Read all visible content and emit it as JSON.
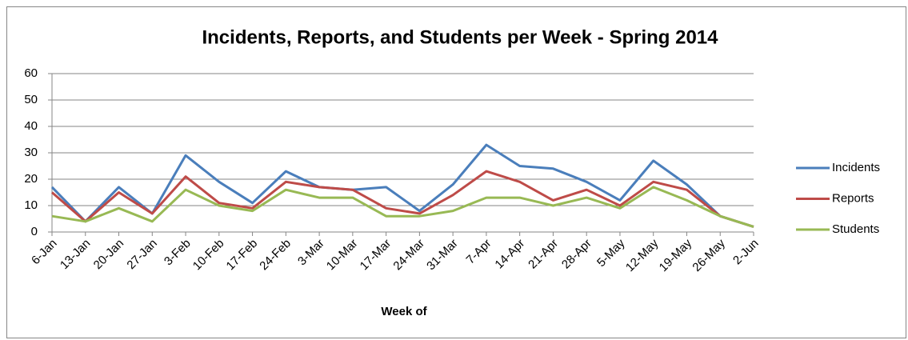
{
  "chart_data": {
    "type": "line",
    "title": "Incidents, Reports, and Students per Week - Spring 2014",
    "x_label": "Week of",
    "categories": [
      "6-Jan",
      "13-Jan",
      "20-Jan",
      "27-Jan",
      "3-Feb",
      "10-Feb",
      "17-Feb",
      "24-Feb",
      "3-Mar",
      "10-Mar",
      "17-Mar",
      "24-Mar",
      "31-Mar",
      "7-Apr",
      "14-Apr",
      "21-Apr",
      "28-Apr",
      "5-May",
      "12-May",
      "19-May",
      "26-May",
      "2-Jun"
    ],
    "series": [
      {
        "name": "Incidents",
        "color": "#4a7ebb",
        "values": [
          17,
          4,
          17,
          7,
          29,
          19,
          11,
          23,
          17,
          16,
          17,
          8,
          18,
          33,
          25,
          24,
          19,
          12,
          27,
          18,
          6,
          2
        ]
      },
      {
        "name": "Reports",
        "color": "#be4b48",
        "values": [
          15,
          4,
          15,
          7,
          21,
          11,
          9,
          19,
          17,
          16,
          9,
          7,
          14,
          23,
          19,
          12,
          16,
          10,
          19,
          16,
          6,
          2
        ]
      },
      {
        "name": "Students",
        "color": "#98b954",
        "values": [
          6,
          4,
          9,
          4,
          16,
          10,
          8,
          16,
          13,
          13,
          6,
          6,
          8,
          13,
          13,
          10,
          13,
          9,
          17,
          12,
          6,
          2
        ]
      }
    ],
    "ylim": [
      0,
      60
    ],
    "yticks": [
      0,
      10,
      20,
      30,
      40,
      50,
      60
    ],
    "grid": true,
    "legend": "right"
  }
}
